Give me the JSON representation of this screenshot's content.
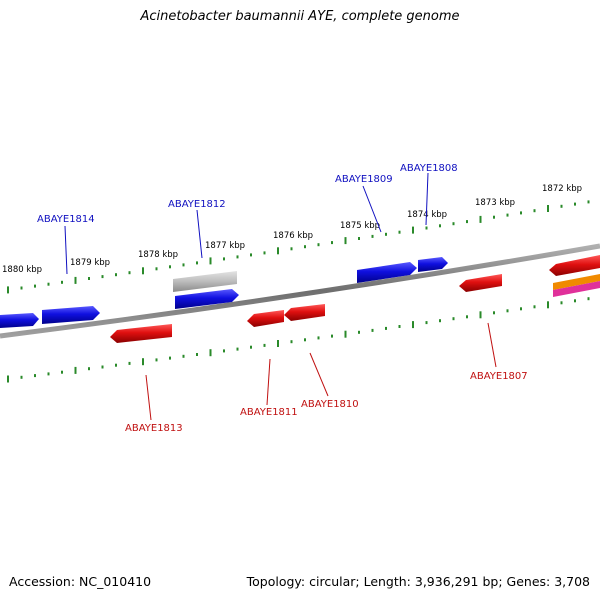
{
  "title": "Acinetobacter baumannii AYE, complete genome",
  "footer": {
    "accession": "Accession: NC_010410",
    "summary": "Topology: circular; Length: 3,936,291 bp; Genes: 3,708"
  },
  "colors": {
    "forward_gene": "#1010e0",
    "reverse_gene": "#e01010",
    "pseudo_gene": "#b8b8b8",
    "tick": "#2a8a2a",
    "backbone": "#808080",
    "forward_label": "#1010c0",
    "reverse_label": "#c01010"
  },
  "ticks": [
    {
      "label": "1880 kbp"
    },
    {
      "label": "1879 kbp"
    },
    {
      "label": "1878 kbp"
    },
    {
      "label": "1877 kbp"
    },
    {
      "label": "1876 kbp"
    },
    {
      "label": "1875 kbp"
    },
    {
      "label": "1874 kbp"
    },
    {
      "label": "1873 kbp"
    },
    {
      "label": "1872 kbp"
    }
  ],
  "genes_forward": [
    {
      "name": "ABAYE1814"
    },
    {
      "name": "ABAYE1812"
    },
    {
      "name": "ABAYE1809"
    },
    {
      "name": "ABAYE1808"
    }
  ],
  "genes_reverse": [
    {
      "name": "ABAYE1813"
    },
    {
      "name": "ABAYE1811"
    },
    {
      "name": "ABAYE1810"
    },
    {
      "name": "ABAYE1807"
    }
  ]
}
